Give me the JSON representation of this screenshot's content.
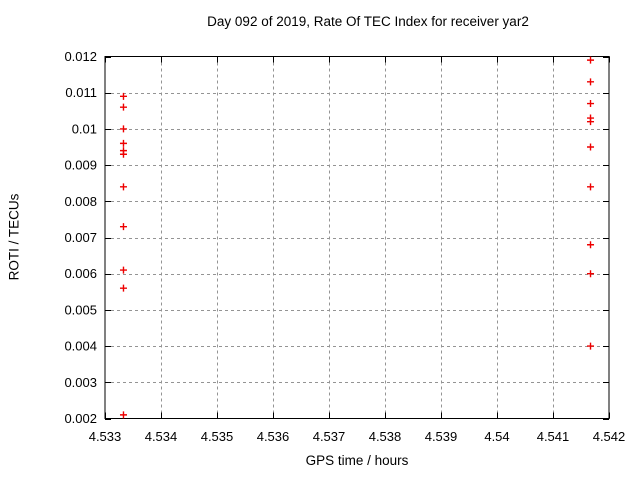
{
  "chart_data": {
    "type": "scatter",
    "title": "Day 092 of 2019, Rate Of TEC Index for receiver yar2",
    "xlabel": "GPS time / hours",
    "ylabel": "ROTI / TECUs",
    "xlim": [
      4.533,
      4.542
    ],
    "ylim": [
      0.002,
      0.012
    ],
    "xticks": [
      4.533,
      4.534,
      4.535,
      4.536,
      4.537,
      4.538,
      4.539,
      4.54,
      4.541,
      4.542
    ],
    "xtick_labels": [
      "4.533",
      "4.534",
      "4.535",
      "4.536",
      "4.537",
      "4.538",
      "4.539",
      "4.54",
      "4.541",
      "4.542"
    ],
    "yticks": [
      0.002,
      0.003,
      0.004,
      0.005,
      0.006,
      0.007,
      0.008,
      0.009,
      0.01,
      0.011,
      0.012
    ],
    "ytick_labels": [
      "0.002",
      "0.003",
      "0.004",
      "0.005",
      "0.006",
      "0.007",
      "0.008",
      "0.009",
      "0.01",
      "0.011",
      "0.012"
    ],
    "grid": "dashed",
    "legend": "none",
    "marker": "plus",
    "marker_color": "#ee0000",
    "grid_color": "#949494",
    "axis_color": "#000000",
    "series": [
      {
        "name": "ROTI",
        "points": [
          [
            4.53333,
            0.0109
          ],
          [
            4.53333,
            0.0106
          ],
          [
            4.53333,
            0.01
          ],
          [
            4.53333,
            0.0096
          ],
          [
            4.53333,
            0.0094
          ],
          [
            4.53333,
            0.0093
          ],
          [
            4.53333,
            0.0084
          ],
          [
            4.53333,
            0.0073
          ],
          [
            4.53333,
            0.0061
          ],
          [
            4.53333,
            0.0056
          ],
          [
            4.53333,
            0.0021
          ],
          [
            4.54167,
            0.0119
          ],
          [
            4.54167,
            0.0113
          ],
          [
            4.54167,
            0.0107
          ],
          [
            4.54167,
            0.0103
          ],
          [
            4.54167,
            0.0102
          ],
          [
            4.54167,
            0.0095
          ],
          [
            4.54167,
            0.0084
          ],
          [
            4.54167,
            0.0068
          ],
          [
            4.54167,
            0.006
          ],
          [
            4.54167,
            0.004
          ]
        ]
      }
    ]
  }
}
